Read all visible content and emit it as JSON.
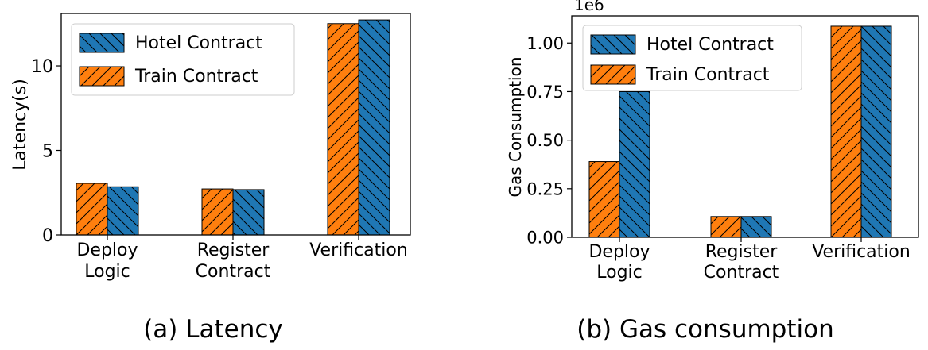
{
  "chart_data": [
    {
      "type": "bar",
      "caption": "(a) Latency",
      "categories": [
        "Deploy\nLogic",
        "Register\nContract",
        "Verification"
      ],
      "ylabel": "Latency(s)",
      "ylim": [
        0,
        13.1
      ],
      "yticks": [
        0,
        5,
        10
      ],
      "grid": false,
      "legend_position": "upper-left",
      "series": [
        {
          "name": "Train Contract",
          "values": [
            3.05,
            2.72,
            12.5
          ],
          "color": "#ff7f0e",
          "hatch": "forward"
        },
        {
          "name": "Hotel Contract",
          "values": [
            2.85,
            2.68,
            12.72
          ],
          "color": "#1f77b4",
          "hatch": "backward"
        }
      ],
      "legend_order": [
        "Hotel Contract",
        "Train Contract"
      ]
    },
    {
      "type": "bar",
      "caption": "(b) Gas consumption",
      "categories": [
        "Deploy\nLogic",
        "Register\nContract",
        "Verification"
      ],
      "ylabel": "Gas Consumption",
      "offset_text": "1e6",
      "ylim": [
        0,
        1.14
      ],
      "yticks": [
        "0.00",
        "0.25",
        "0.50",
        "0.75",
        "1.00"
      ],
      "grid": false,
      "legend_position": "upper-left",
      "series": [
        {
          "name": "Train Contract",
          "values": [
            0.39,
            0.107,
            1.087
          ],
          "color": "#ff7f0e",
          "hatch": "forward"
        },
        {
          "name": "Hotel Contract",
          "values": [
            0.75,
            0.107,
            1.087
          ],
          "color": "#1f77b4",
          "hatch": "backward"
        }
      ],
      "legend_order": [
        "Hotel Contract",
        "Train Contract"
      ]
    }
  ]
}
